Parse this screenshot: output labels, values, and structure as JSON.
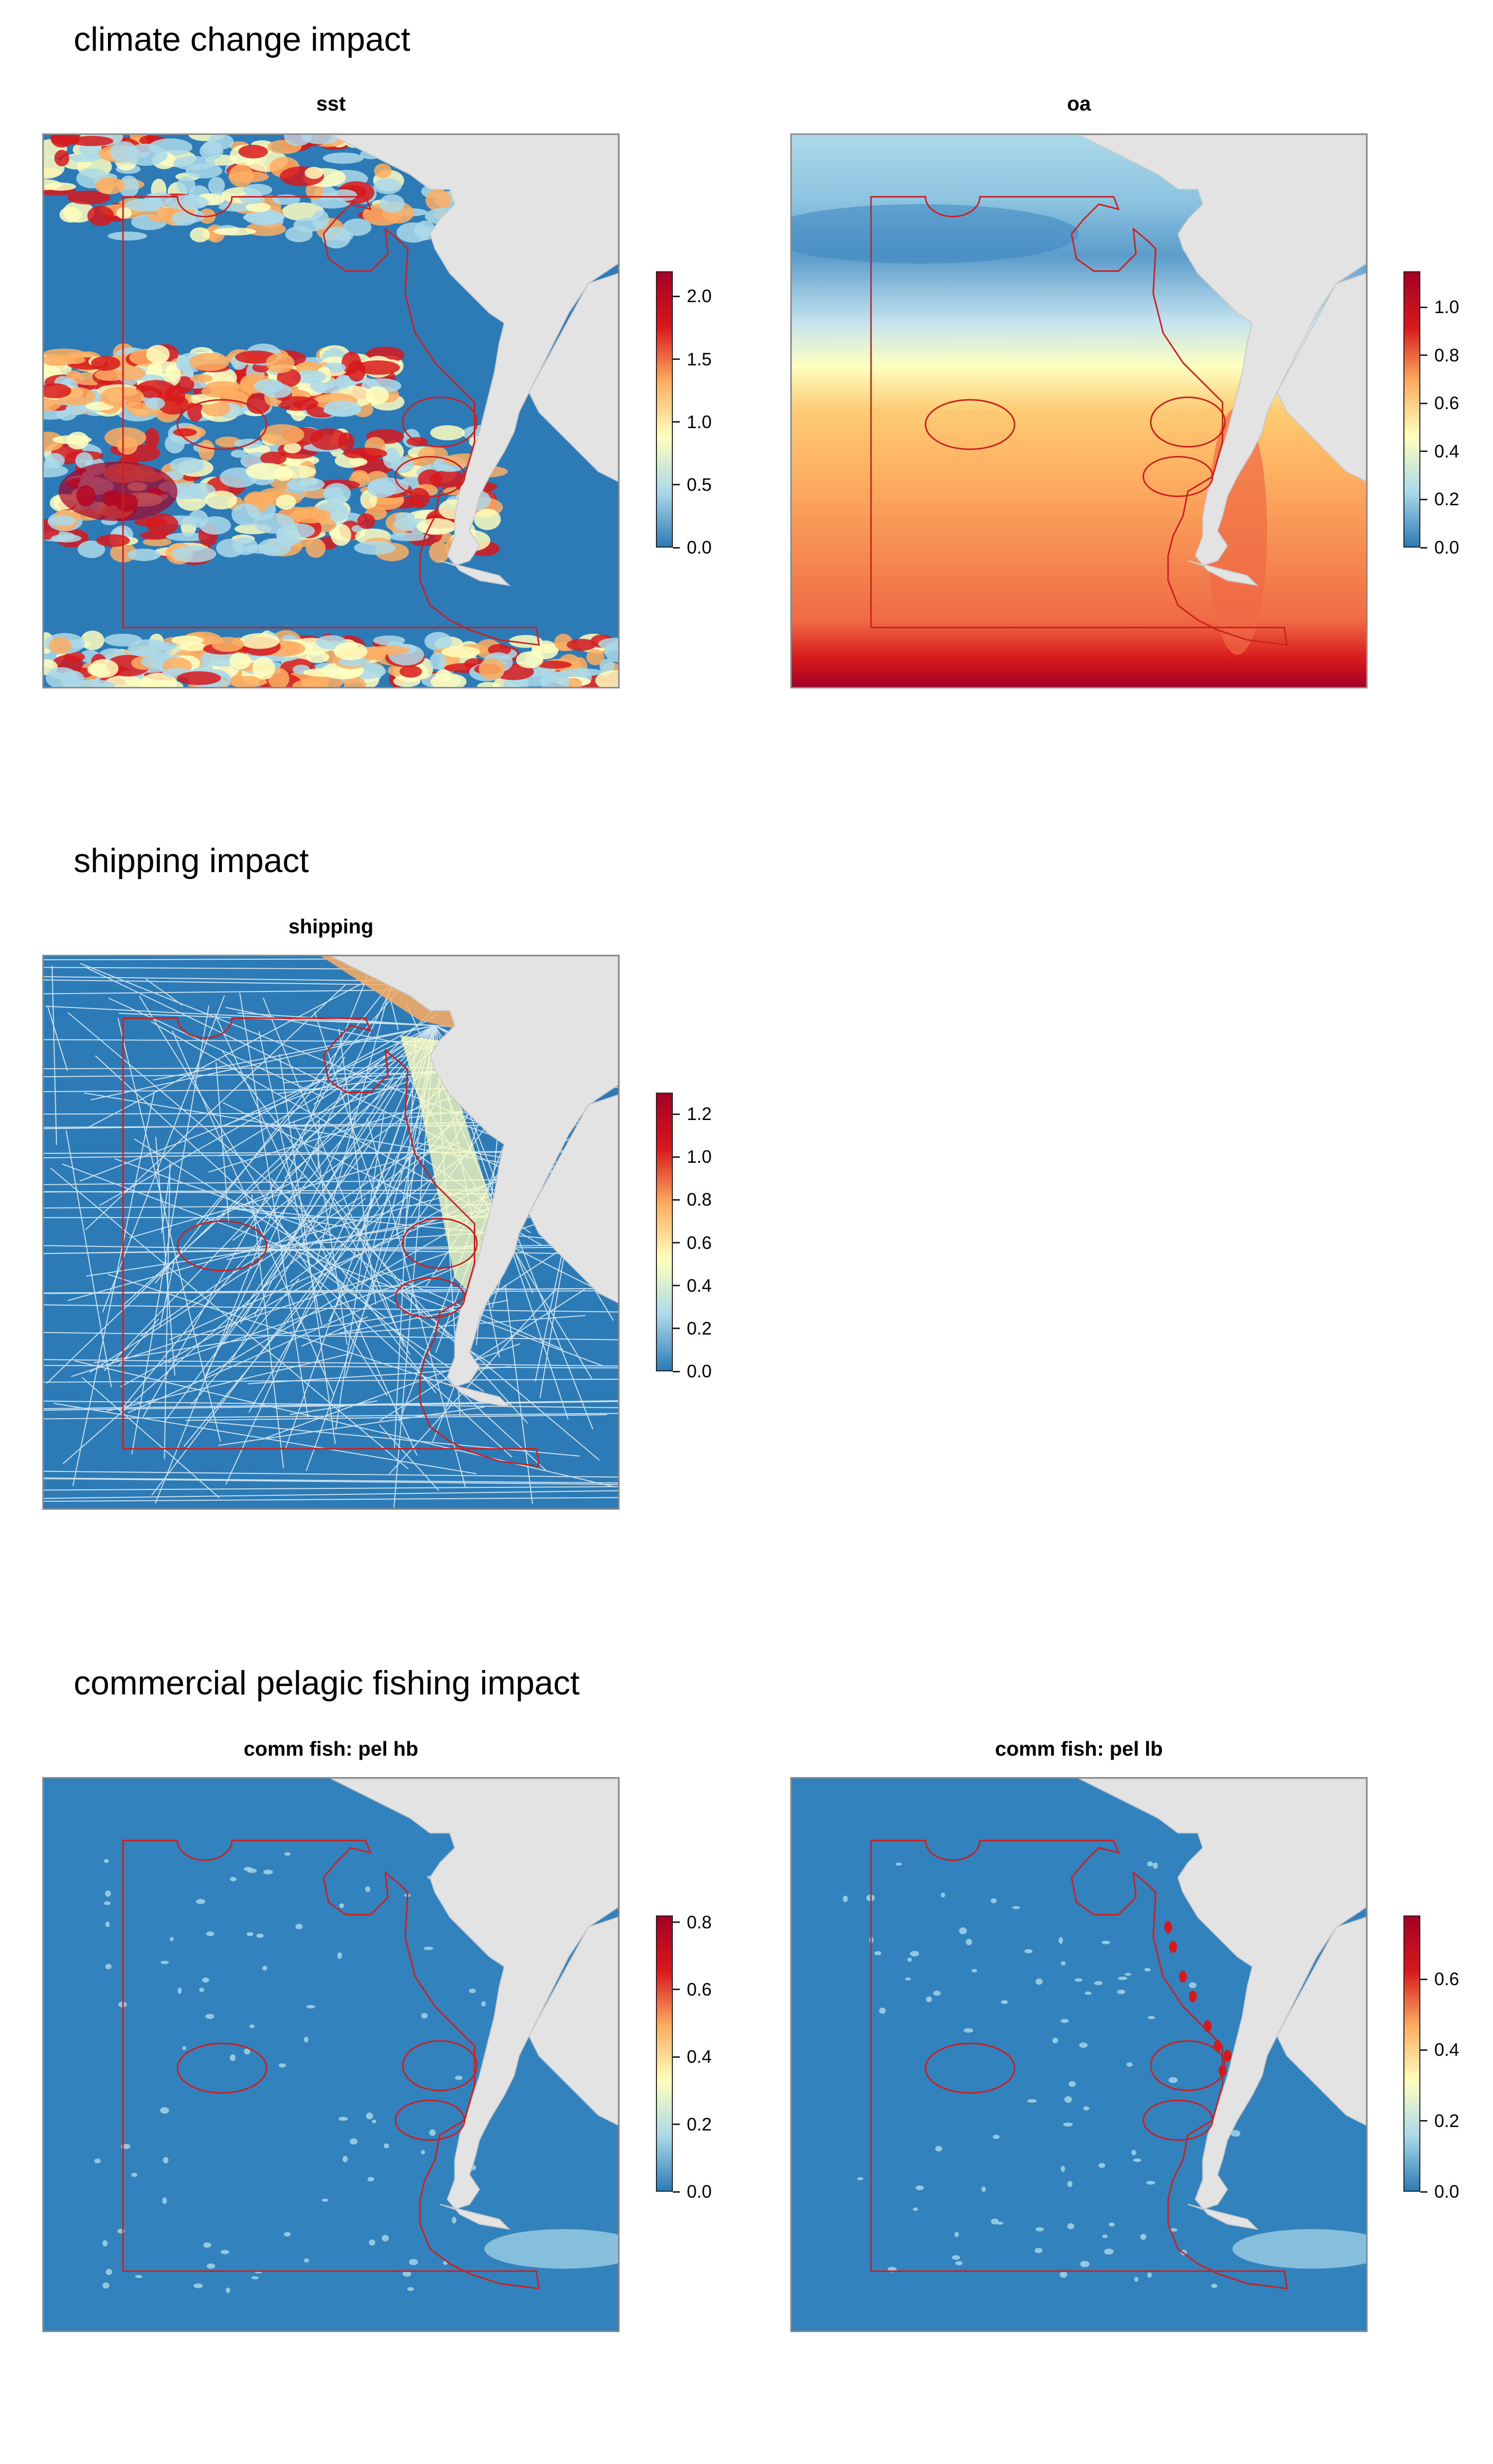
{
  "sections": [
    {
      "title": "climate change impact"
    },
    {
      "title": "shipping impact"
    },
    {
      "title": "commercial pelagic fishing impact"
    }
  ],
  "colors": {
    "ocean_low": "#3182bd",
    "land": "#e3e3e3",
    "boundary": "#cc1f1f",
    "palette": [
      "#2c7bb6",
      "#abd9e9",
      "#ffffbf",
      "#fdae61",
      "#d7191c",
      "#a50026"
    ]
  },
  "chart_data": [
    {
      "type": "heatmap",
      "title": "sst",
      "section": "climate change impact",
      "legend_ticks": [
        "0.0",
        "0.5",
        "1.0",
        "1.5",
        "2.0"
      ],
      "legend_range": [
        0,
        2.2
      ],
      "pattern": "sst"
    },
    {
      "type": "heatmap",
      "title": "oa",
      "section": "climate change impact",
      "legend_ticks": [
        "0.0",
        "0.2",
        "0.4",
        "0.6",
        "0.8",
        "1.0"
      ],
      "legend_range": [
        0,
        1.15
      ],
      "pattern": "oa"
    },
    {
      "type": "heatmap",
      "title": "shipping",
      "section": "shipping impact",
      "legend_ticks": [
        "0.0",
        "0.2",
        "0.4",
        "0.6",
        "0.8",
        "1.0",
        "1.2"
      ],
      "legend_range": [
        0,
        1.3
      ],
      "pattern": "shipping"
    },
    {
      "type": "heatmap",
      "title": "comm fish: pel hb",
      "section": "commercial pelagic fishing impact",
      "legend_ticks": [
        "0.0",
        "0.2",
        "0.4",
        "0.6",
        "0.8"
      ],
      "legend_range": [
        0,
        0.82
      ],
      "pattern": "fish_hb"
    },
    {
      "type": "heatmap",
      "title": "comm fish: pel lb",
      "section": "commercial pelagic fishing impact",
      "legend_ticks": [
        "0.0",
        "0.2",
        "0.4",
        "0.6"
      ],
      "legend_range": [
        0,
        0.78
      ],
      "pattern": "fish_lb"
    }
  ]
}
